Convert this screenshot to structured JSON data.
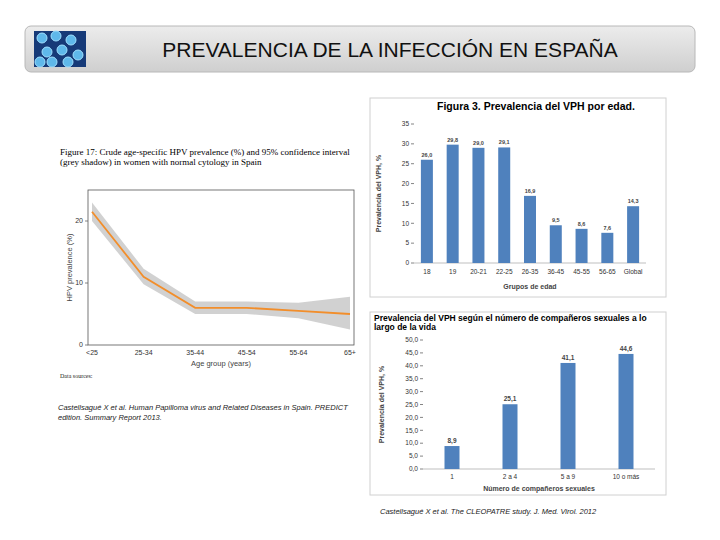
{
  "slide_title": "PREVALENCIA DE LA INFECCIÓN EN ESPAÑA",
  "sources": [
    "Castellsagué X et al. Human Papilloma virus and Related Diseases in Spain. PREDICT edition. Summary Report 2013.",
    "Castellsagué X et al. The CLEOPATRE study. J. Med. Virol. 2012"
  ],
  "chart_data": [
    {
      "type": "line",
      "title": "Figure 17: Crude age-specific HPV prevalence (%) and 95% confidence interval (grey shadow) in women with normal cytology in Spain",
      "x_label": "Age group (years)",
      "y_label": "HPV prevalence (%)",
      "annotation": "Data sources:",
      "categories": [
        "<25",
        "25-34",
        "35-44",
        "45-54",
        "55-64",
        "65+"
      ],
      "values": [
        21.5,
        11,
        6,
        6,
        5.5,
        5
      ],
      "ci_lower": [
        20,
        9.8,
        5,
        5,
        4.3,
        2.5
      ],
      "ci_upper": [
        23,
        12.3,
        7,
        7,
        6.8,
        7.8
      ],
      "color": "#f28e2b",
      "ylim": [
        0,
        25
      ],
      "yticks": [
        0,
        10,
        20
      ],
      "grid": false
    },
    {
      "type": "bar",
      "title": "Figura 3. Prevalencia del VPH por edad.",
      "x_label": "Grupos de edad",
      "y_label": "Prevalencia del VPH, %",
      "categories": [
        "18",
        "19",
        "20-21",
        "22-25",
        "26-35",
        "36-45",
        "45-55",
        "56-65",
        "Global"
      ],
      "values": [
        26.0,
        29.8,
        29.0,
        29.1,
        16.9,
        9.5,
        8.6,
        7.6,
        14.3
      ],
      "value_labels": [
        "26,0",
        "29,8",
        "29,0",
        "29,1",
        "16,9",
        "9,5",
        "8,6",
        "7,6",
        "14,3"
      ],
      "color": "#4f81bd",
      "ylim": [
        0,
        35
      ],
      "yticks": [
        0,
        5,
        10,
        15,
        20,
        25,
        30,
        35
      ],
      "grid": false,
      "data_labels": true
    },
    {
      "type": "bar",
      "title": "Prevalencia del VPH según el número de compañeros sexuales a lo largo de la vida",
      "x_label": "Número de compañeros sexuales",
      "y_label": "Prevalencia del VPH, %",
      "categories": [
        "1",
        "2 a 4",
        "5 a 9",
        "10 o más"
      ],
      "values": [
        8.9,
        25.1,
        41.1,
        44.6
      ],
      "value_labels": [
        "8,9",
        "25,1",
        "41,1",
        "44,6"
      ],
      "color": "#4f81bd",
      "ylim": [
        0,
        50
      ],
      "yticks": [
        {
          "value": 0,
          "label": "0,0"
        },
        {
          "value": 5,
          "label": "5,0"
        },
        {
          "value": 10,
          "label": "10,0"
        },
        {
          "value": 15,
          "label": "15,0"
        },
        {
          "value": 20,
          "label": "20,0"
        },
        {
          "value": 25,
          "label": "25,0"
        },
        {
          "value": 30,
          "label": "30,0"
        },
        {
          "value": 35,
          "label": "35,0"
        },
        {
          "value": 40,
          "label": "40,0"
        },
        {
          "value": 45,
          "label": "45,0"
        },
        {
          "value": 50,
          "label": "50,0"
        }
      ],
      "grid": false,
      "data_labels": true
    }
  ]
}
